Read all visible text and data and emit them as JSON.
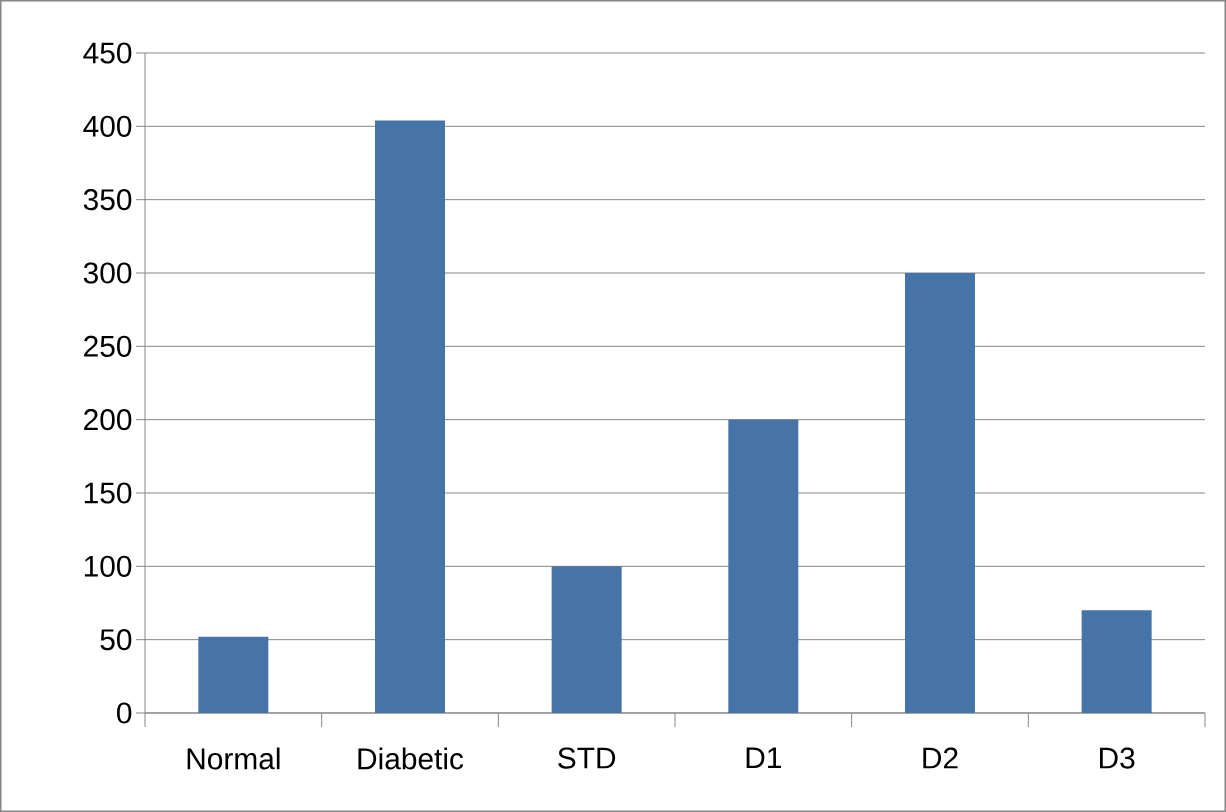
{
  "chart_data": {
    "type": "bar",
    "categories": [
      "Normal",
      "Diabetic",
      "STD",
      "D1",
      "D2",
      "D3"
    ],
    "values": [
      52,
      404,
      100,
      200,
      300,
      70
    ],
    "color": "#4674a8",
    "ylim": [
      0,
      450
    ],
    "yticks": [
      0,
      50,
      100,
      150,
      200,
      250,
      300,
      350,
      400,
      450
    ],
    "grid": "y"
  }
}
